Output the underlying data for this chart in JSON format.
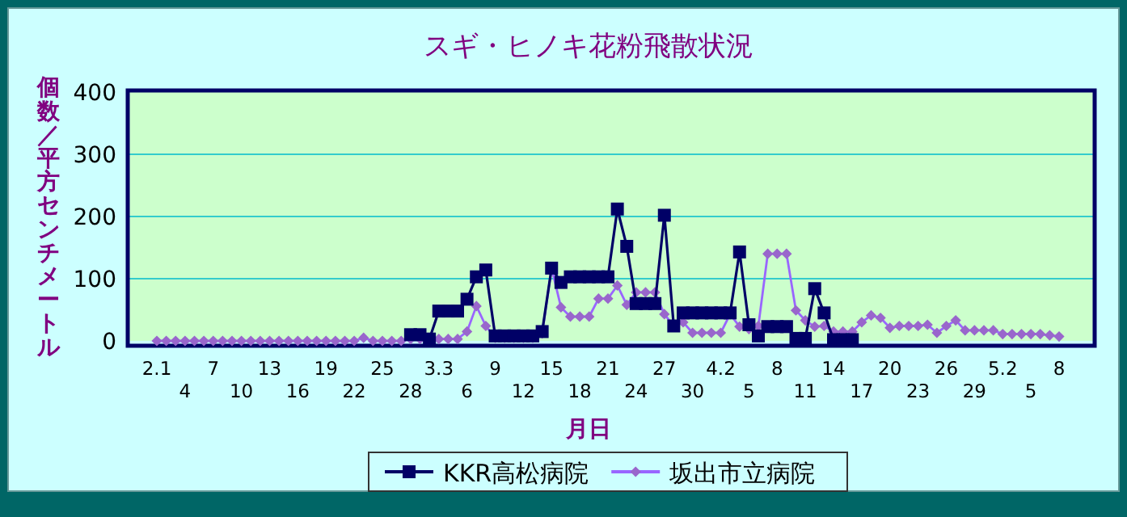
{
  "chart_data": {
    "type": "line",
    "title": "スギ・ヒノキ花粉飛散状況",
    "xlabel": "月日",
    "ylabel": "個数／平方センチメートル",
    "categories": [
      "2.1",
      null,
      null,
      "4",
      null,
      null,
      "7",
      null,
      null,
      "10",
      null,
      null,
      "13",
      null,
      null,
      "16",
      null,
      null,
      "19",
      null,
      null,
      "22",
      null,
      null,
      "25",
      null,
      null,
      "28",
      null,
      null,
      "3.3",
      null,
      null,
      "6",
      null,
      null,
      "9",
      null,
      null,
      "12",
      null,
      null,
      "15",
      null,
      null,
      "18",
      null,
      null,
      "21",
      null,
      null,
      "24",
      null,
      null,
      "27",
      null,
      null,
      "30",
      null,
      null,
      "4.2",
      null,
      null,
      "5",
      null,
      null,
      "8",
      null,
      null,
      "11",
      null,
      null,
      "14",
      null,
      null,
      "17",
      null,
      null,
      "20",
      null,
      null,
      "23",
      null,
      null,
      "26",
      null,
      null,
      "29",
      null,
      null,
      "5.2",
      null,
      null,
      "5",
      null,
      null,
      "8"
    ],
    "series": [
      {
        "name": "KKR高松病院",
        "color": "#000066",
        "marker": "square",
        "values": [
          null,
          null,
          null,
          null,
          null,
          null,
          null,
          null,
          null,
          null,
          null,
          null,
          null,
          null,
          null,
          null,
          null,
          null,
          null,
          null,
          null,
          null,
          null,
          null,
          null,
          null,
          null,
          10,
          10,
          3,
          48,
          48,
          48,
          67,
          103,
          114,
          8,
          8,
          8,
          8,
          8,
          15,
          117,
          94,
          103,
          103,
          103,
          103,
          103,
          212,
          152,
          60,
          60,
          60,
          202,
          24,
          45,
          45,
          45,
          45,
          45,
          45,
          143,
          26,
          8,
          23,
          23,
          23,
          4,
          4,
          84,
          45,
          2,
          2,
          2,
          null,
          null,
          null,
          null,
          null,
          null,
          null,
          null,
          null,
          null,
          null,
          null,
          null,
          null,
          null,
          null,
          null,
          null,
          null,
          null,
          null,
          null
        ]
      },
      {
        "name": "坂出市立病院",
        "color": "#9966cc",
        "marker": "diamond",
        "values": [
          0,
          0,
          0,
          0,
          0,
          0,
          0,
          0,
          0,
          0,
          0,
          0,
          0,
          0,
          0,
          0,
          0,
          0,
          0,
          0,
          0,
          0,
          5,
          0,
          0,
          0,
          0,
          3,
          3,
          3,
          3,
          3,
          3,
          15,
          56,
          24,
          5,
          5,
          5,
          5,
          5,
          12,
          117,
          54,
          39,
          39,
          39,
          68,
          68,
          89,
          58,
          78,
          78,
          78,
          43,
          24,
          30,
          13,
          13,
          13,
          13,
          43,
          23,
          19,
          24,
          140,
          140,
          140,
          49,
          33,
          23,
          24,
          15,
          15,
          15,
          30,
          41,
          37,
          21,
          24,
          24,
          24,
          26,
          13,
          24,
          33,
          17,
          17,
          17,
          17,
          11,
          11,
          11,
          11,
          11,
          9,
          7
        ]
      }
    ],
    "ylim": [
      0,
      400
    ],
    "yticks": [
      0,
      100,
      200,
      300,
      400
    ],
    "grid": "y",
    "legend": "bottom"
  }
}
